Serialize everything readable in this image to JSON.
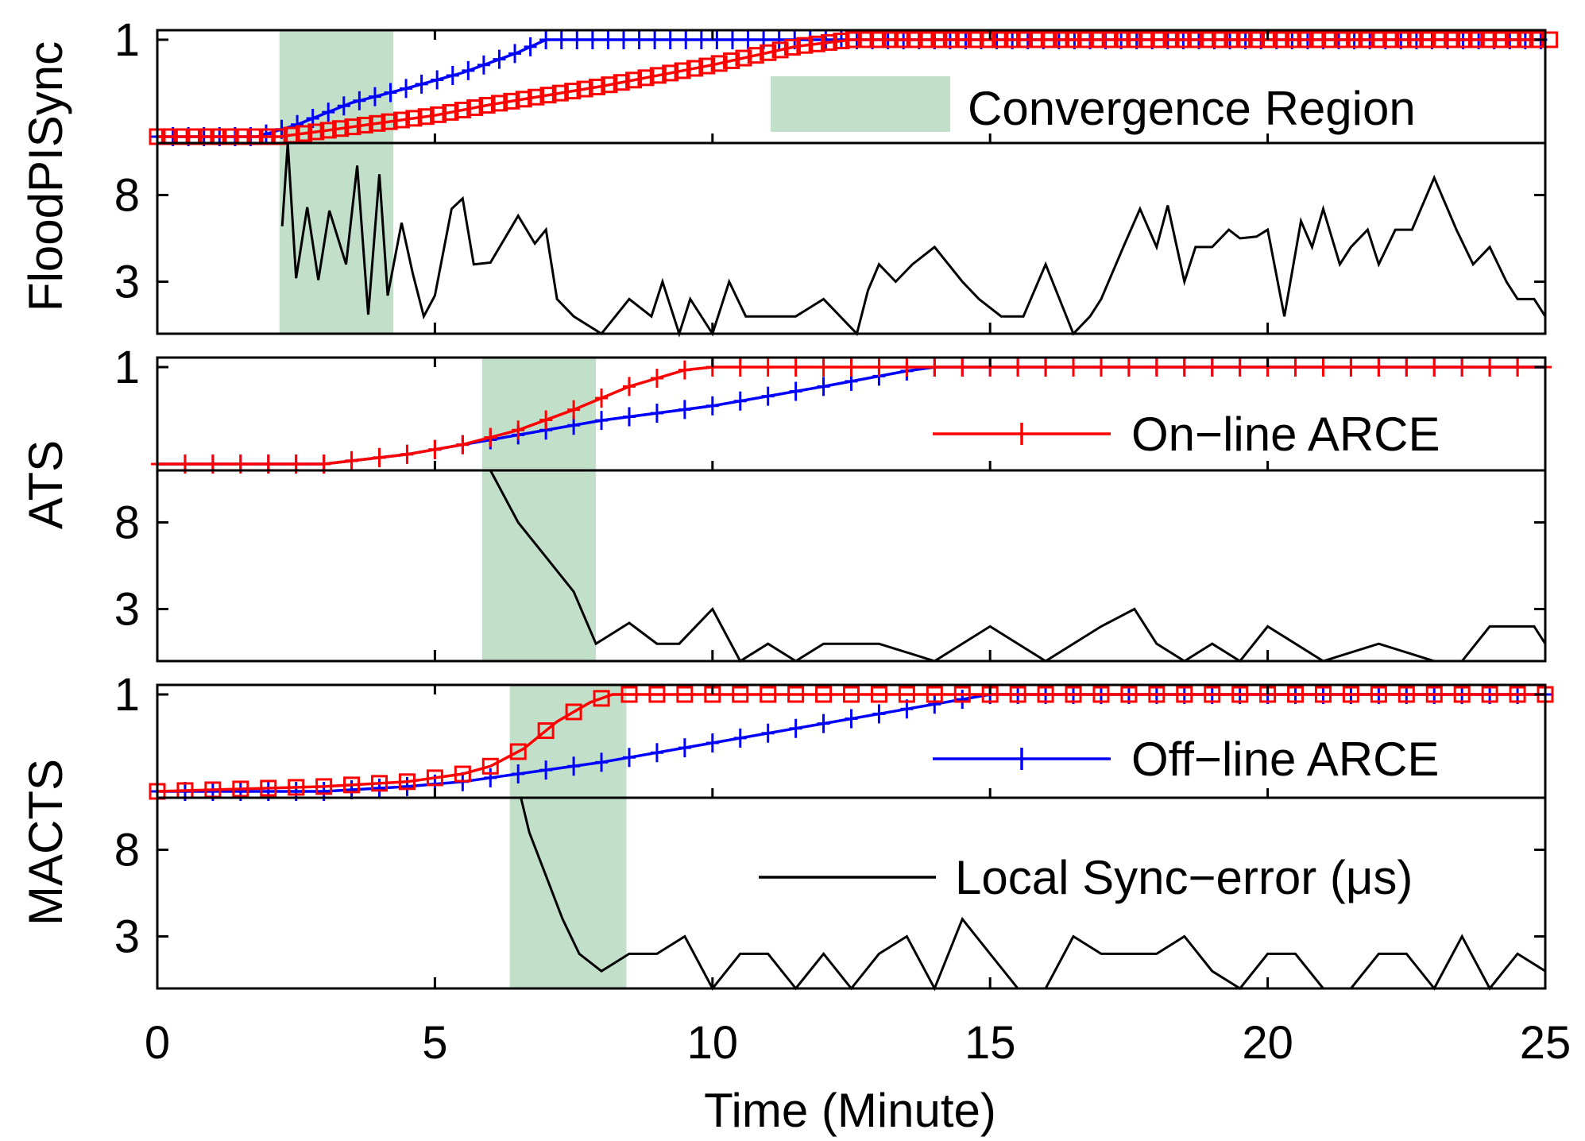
{
  "chart_data": {
    "type": "line",
    "xlabel": "Time (Minute)",
    "xlim": [
      0,
      25
    ],
    "xticks": [
      "0",
      "5",
      "10",
      "15",
      "20",
      "25"
    ],
    "legend": {
      "convergence": "Convergence Region",
      "online": "On−line ARCE",
      "offline": "Off−line ARCE",
      "error": "Local Sync−error (μs)"
    },
    "colors": {
      "online": "#ff0000",
      "offline": "#0000ff",
      "error": "#000000",
      "region": "#c2dfca"
    },
    "arce_ylim": [
      0,
      1
    ],
    "arce_ytick_label": "1",
    "error_ylim": [
      0,
      11
    ],
    "error_yticks": [
      "8",
      "3"
    ],
    "panels": [
      {
        "label": "FloodPISync",
        "convergence": [
          2.2,
          4.25
        ],
        "online": {
          "x": [
            0,
            2.2,
            3,
            4,
            5,
            6,
            8,
            10,
            11.5,
            12.5,
            25
          ],
          "y": [
            0,
            0,
            0.06,
            0.14,
            0.22,
            0.33,
            0.52,
            0.74,
            0.93,
            1.0,
            1.0
          ]
        },
        "offline": {
          "x": [
            0,
            1.8,
            2.5,
            3.5,
            4.5,
            5.5,
            6.5,
            7,
            25
          ],
          "y": [
            0,
            0,
            0.12,
            0.35,
            0.5,
            0.66,
            0.87,
            1.0,
            1.0
          ]
        },
        "error": {
          "x": [
            2.25,
            2.35,
            2.5,
            2.7,
            2.9,
            3.1,
            3.4,
            3.6,
            3.8,
            4.0,
            4.15,
            4.4,
            4.6,
            4.8,
            5.0,
            5.3,
            5.5,
            5.7,
            6.0,
            6.5,
            6.8,
            7.0,
            7.2,
            7.5,
            8.0,
            8.5,
            8.9,
            9.1,
            9.4,
            9.6,
            10.0,
            10.3,
            10.6,
            11.0,
            11.5,
            12.0,
            12.6,
            12.8,
            13.0,
            13.3,
            13.6,
            14.0,
            14.5,
            14.8,
            15.2,
            15.6,
            16.0,
            16.5,
            16.8,
            17.0,
            17.4,
            17.7,
            18.0,
            18.2,
            18.5,
            18.7,
            19.0,
            19.3,
            19.5,
            19.8,
            20.0,
            20.3,
            20.6,
            20.8,
            21.0,
            21.3,
            21.5,
            21.8,
            22.0,
            22.3,
            22.6,
            23.0,
            23.4,
            23.7,
            24.0,
            24.3,
            24.5,
            24.8,
            25.0
          ],
          "y": [
            6.2,
            11.0,
            3.2,
            7.3,
            3.1,
            7.1,
            4.0,
            9.7,
            1.1,
            9.2,
            2.2,
            6.4,
            3.5,
            1.0,
            2.2,
            7.2,
            7.8,
            4.0,
            4.1,
            6.8,
            5.2,
            6.0,
            2.0,
            1.0,
            0.0,
            2.0,
            1.0,
            3.0,
            0.0,
            2.0,
            0.0,
            3.0,
            1.0,
            1.0,
            1.0,
            2.0,
            0.0,
            2.5,
            4.0,
            3.0,
            4.0,
            5.0,
            3.0,
            2.0,
            1.0,
            1.0,
            4.0,
            0.0,
            1.0,
            2.0,
            5.0,
            7.2,
            5.0,
            7.4,
            3.0,
            5.0,
            5.0,
            6.0,
            5.5,
            5.6,
            6.0,
            1.0,
            6.5,
            5.0,
            7.2,
            4.0,
            5.0,
            6.0,
            4.0,
            6.0,
            6.0,
            9.0,
            6.0,
            4.0,
            5.0,
            3.0,
            2.0,
            2.0,
            1.0
          ]
        }
      },
      {
        "label": "ATS",
        "convergence": [
          5.85,
          7.9
        ],
        "online": {
          "x": [
            0,
            3,
            4.5,
            5.5,
            6.5,
            7.5,
            8.5,
            9.5,
            10,
            25
          ],
          "y": [
            0,
            0,
            0.1,
            0.2,
            0.35,
            0.56,
            0.8,
            0.97,
            1.0,
            1.0
          ]
        },
        "offline": {
          "x": [
            0,
            3,
            4.5,
            5.5,
            6.5,
            8,
            10,
            12,
            13.5,
            14,
            25
          ],
          "y": [
            0,
            0,
            0.1,
            0.2,
            0.3,
            0.45,
            0.6,
            0.8,
            0.96,
            1.0,
            1.0
          ]
        },
        "error": {
          "x": [
            6.0,
            6.5,
            7.0,
            7.5,
            7.9,
            8.5,
            9.0,
            9.4,
            10.0,
            10.5,
            11.0,
            11.5,
            12.0,
            13.0,
            14.0,
            15.0,
            16.0,
            17.0,
            17.6,
            18.0,
            18.5,
            19.0,
            19.5,
            20.0,
            21.0,
            22.0,
            23.0,
            23.5,
            24.0,
            24.5,
            24.8,
            25.0
          ],
          "y": [
            11.0,
            8.0,
            6.0,
            4.0,
            1.0,
            2.2,
            1.0,
            1.0,
            3.0,
            0.0,
            1.0,
            0.0,
            1.0,
            1.0,
            0.0,
            2.0,
            0.0,
            2.0,
            3.0,
            1.0,
            0.0,
            1.0,
            0.0,
            2.0,
            0.0,
            1.0,
            0.0,
            0.0,
            2.0,
            2.0,
            2.0,
            1.0
          ]
        }
      },
      {
        "label": "MACTS",
        "convergence": [
          6.35,
          8.45
        ],
        "online": {
          "x": [
            0,
            3,
            4.5,
            5.5,
            6.0,
            6.6,
            7.2,
            7.8,
            8.2,
            25
          ],
          "y": [
            0,
            0.05,
            0.1,
            0.18,
            0.26,
            0.44,
            0.72,
            0.92,
            1.0,
            1.0
          ]
        },
        "offline": {
          "x": [
            0,
            3,
            4.5,
            5.5,
            6.5,
            8,
            10,
            12,
            13.5,
            15,
            25
          ],
          "y": [
            0,
            0,
            0.05,
            0.1,
            0.18,
            0.3,
            0.5,
            0.7,
            0.85,
            1.0,
            1.0
          ]
        },
        "error": {
          "x": [
            6.55,
            6.7,
            7.0,
            7.3,
            7.6,
            8.0,
            8.5,
            9.0,
            9.5,
            10.0,
            10.5,
            11.0,
            11.5,
            12.0,
            12.5,
            13.0,
            13.5,
            14.0,
            14.5,
            15.0,
            15.5,
            16.0,
            16.5,
            17.0,
            17.5,
            18.0,
            18.5,
            19.0,
            19.5,
            20.0,
            20.5,
            21.0,
            21.5,
            22.0,
            22.5,
            23.0,
            23.5,
            24.0,
            24.5,
            25.0
          ],
          "y": [
            11.0,
            9.0,
            6.5,
            4.0,
            2.0,
            1.0,
            2.0,
            2.0,
            3.0,
            0.0,
            2.0,
            2.0,
            0.0,
            2.0,
            0.0,
            2.0,
            3.0,
            0.0,
            4.0,
            2.0,
            0.0,
            0.0,
            3.0,
            2.0,
            2.0,
            2.0,
            3.0,
            1.0,
            0.0,
            2.0,
            2.0,
            0.0,
            0.0,
            2.0,
            2.0,
            0.0,
            3.0,
            0.0,
            2.0,
            1.0
          ]
        }
      }
    ]
  }
}
